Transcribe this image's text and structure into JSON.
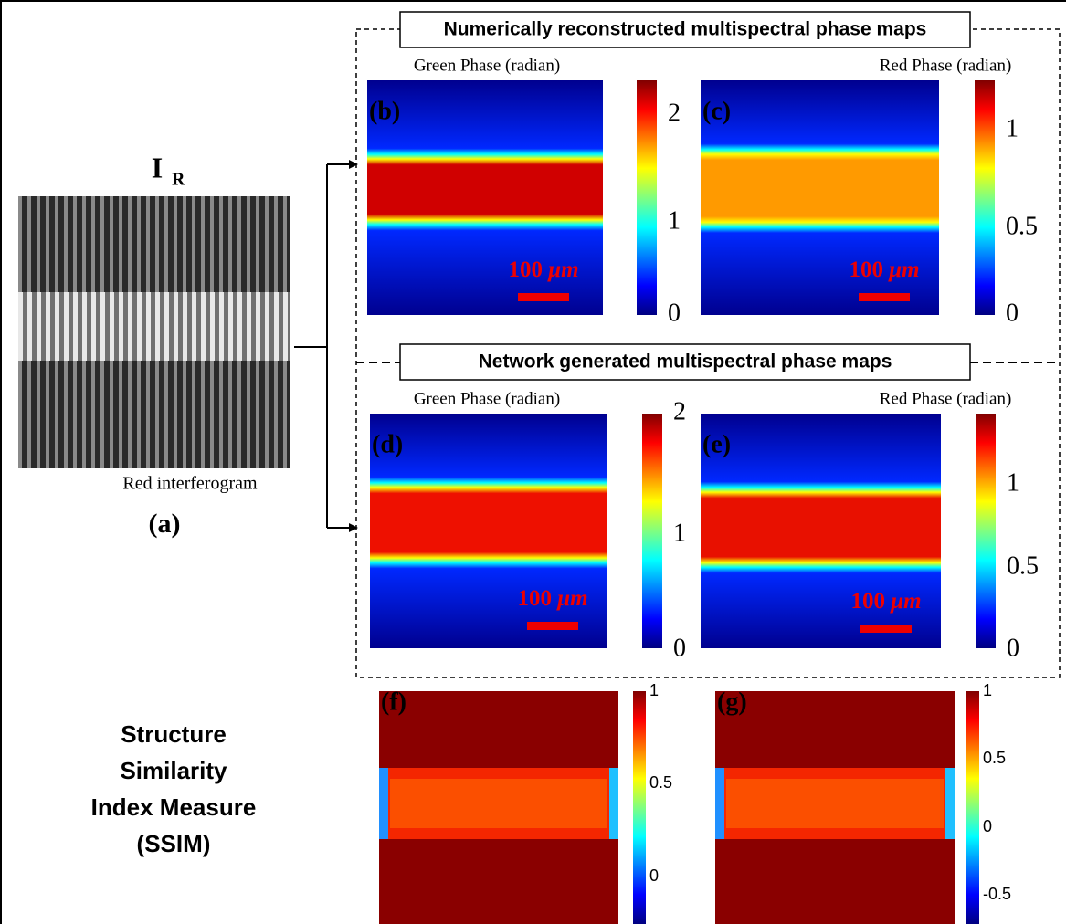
{
  "panel_a": {
    "title": "I",
    "subscript": "R",
    "caption": "Red interferogram",
    "label": "(a)"
  },
  "groups": [
    {
      "title": "Numerically reconstructed multispectral phase maps"
    },
    {
      "title": "Network generated multispectral phase maps"
    }
  ],
  "panels": [
    {
      "label": "(b)",
      "title": "Green Phase (radian)",
      "scale_value": "100",
      "scale_unit": "μm",
      "ticks": [
        "2",
        "1",
        "0"
      ]
    },
    {
      "label": "(c)",
      "title": "Red Phase (radian)",
      "scale_value": "100",
      "scale_unit": "μm",
      "ticks": [
        "1",
        "0.5",
        "0"
      ]
    },
    {
      "label": "(d)",
      "title": "Green Phase (radian)",
      "scale_value": "100",
      "scale_unit": "μm",
      "ticks": [
        "2",
        "1",
        "0"
      ]
    },
    {
      "label": "(e)",
      "title": "Red Phase (radian)",
      "scale_value": "100",
      "scale_unit": "μm",
      "ticks": [
        "1",
        "0.5",
        "0"
      ]
    }
  ],
  "ssim": {
    "lines": [
      "Structure",
      "Similarity",
      "Index Measure",
      "(SSIM)"
    ],
    "panels": [
      {
        "label": "(f)",
        "ticks": [
          "1",
          "0.5",
          "0"
        ]
      },
      {
        "label": "(g)",
        "ticks": [
          "1",
          "0.5",
          "0",
          "-0.5"
        ]
      }
    ]
  }
}
